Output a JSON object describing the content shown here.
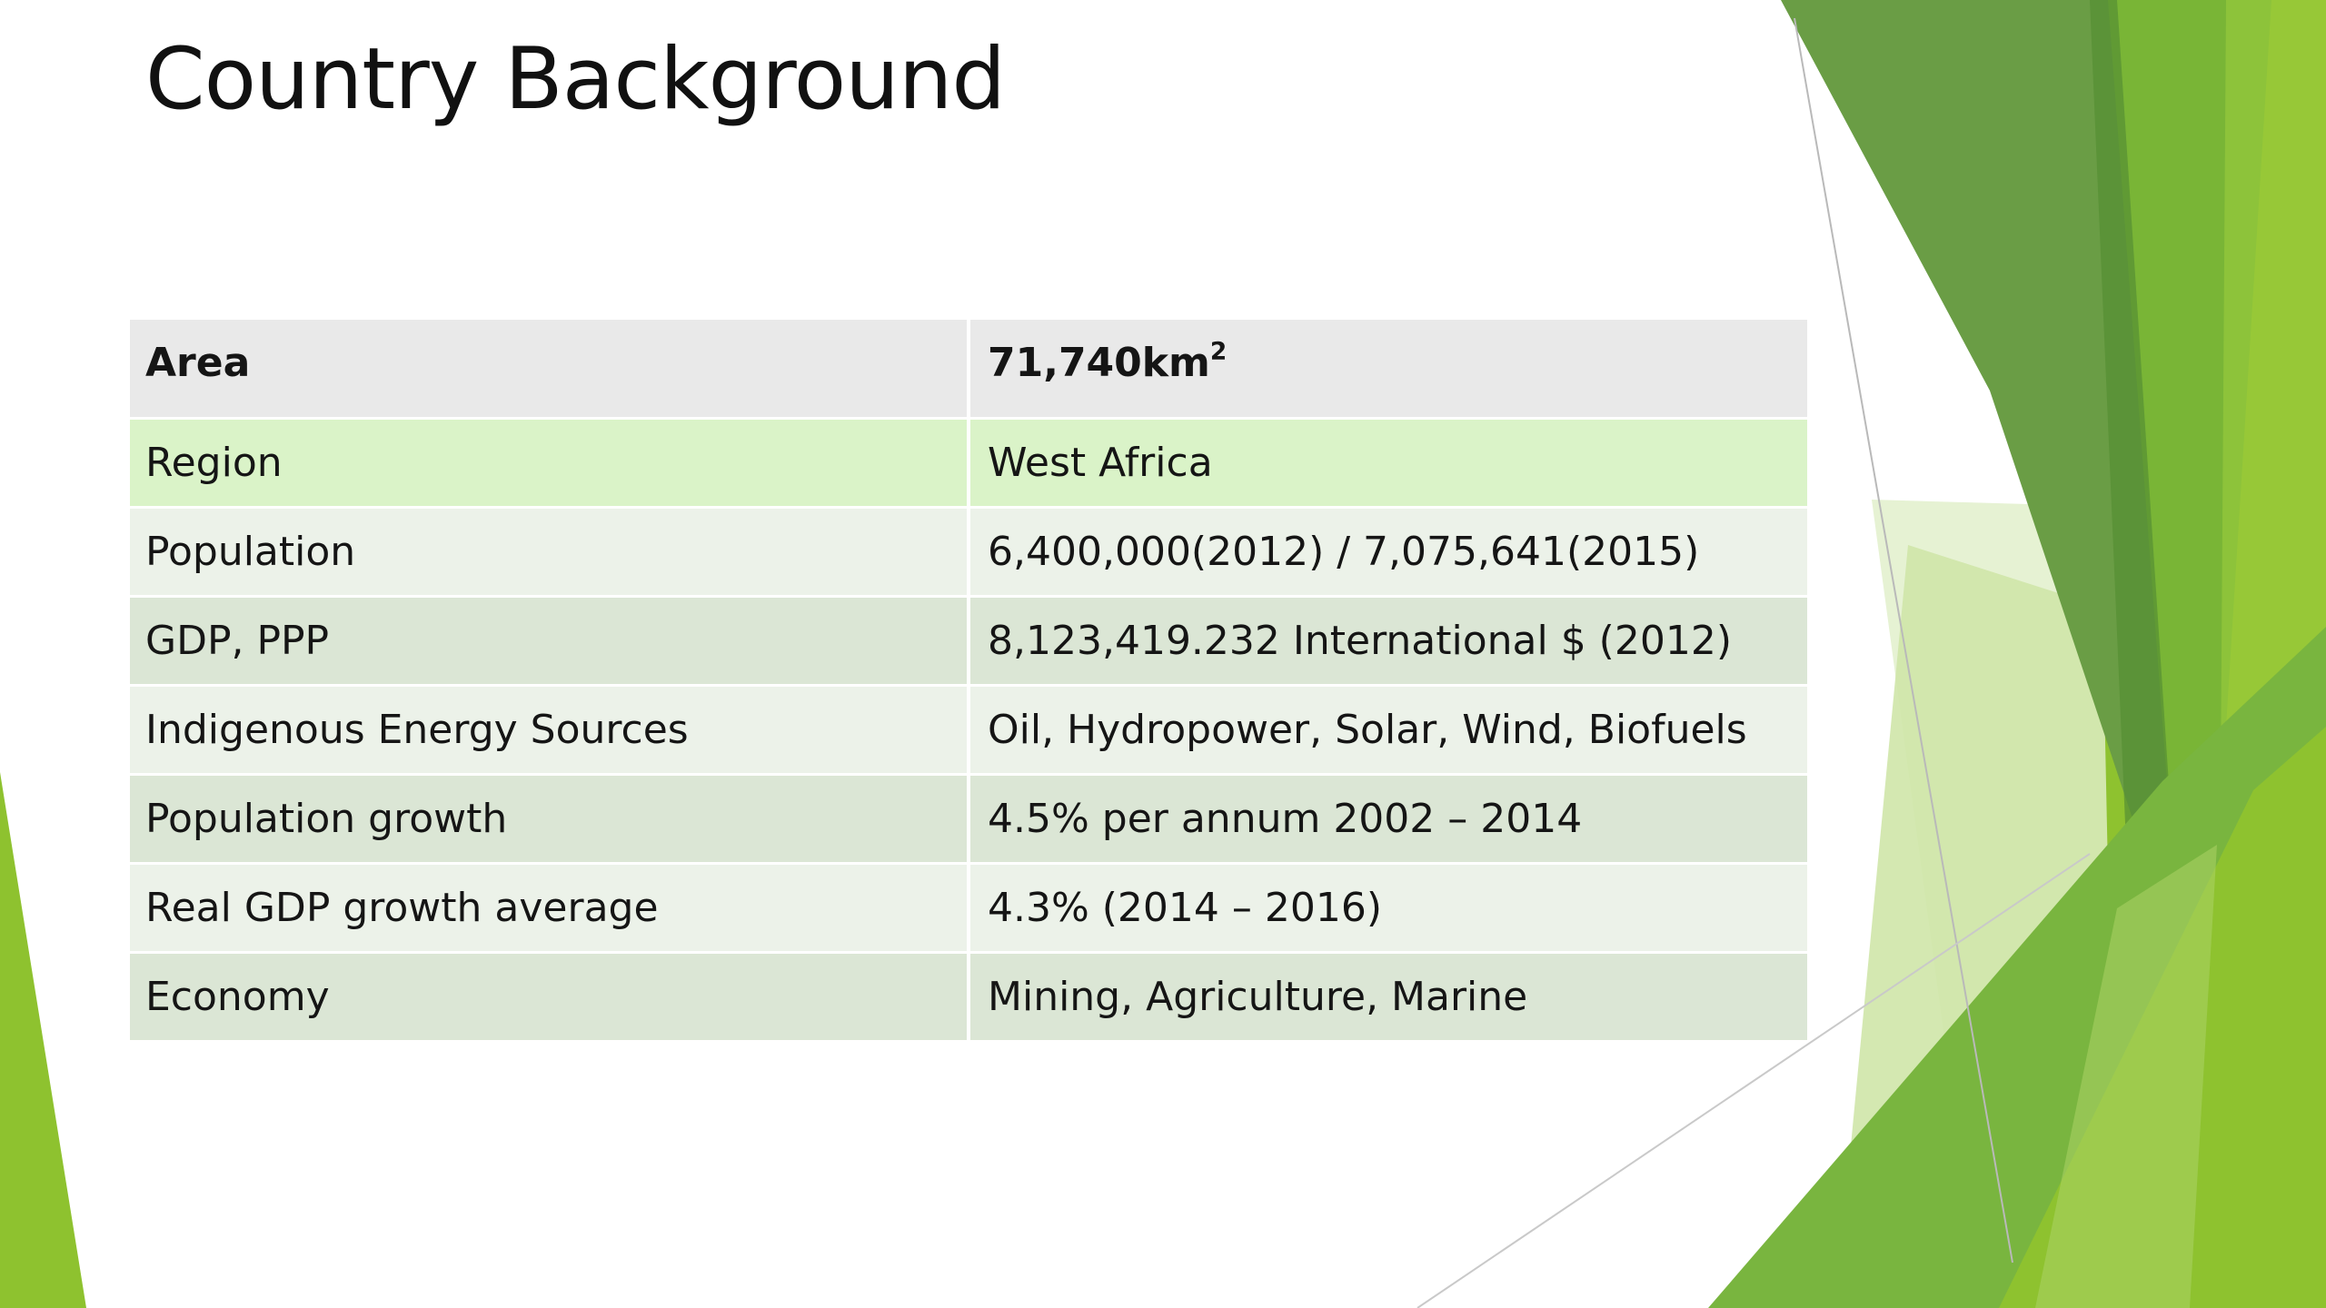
{
  "slide": {
    "title": "Country Background"
  },
  "table": {
    "rows": [
      {
        "label": "Area",
        "value": "71,740km",
        "value_sup": "2"
      },
      {
        "label": "Region",
        "value": "West Africa"
      },
      {
        "label": "Population",
        "value": "6,400,000(2012) / 7,075,641(2015)"
      },
      {
        "label": "GDP, PPP",
        "value": "8,123,419.232 International $ (2012)"
      },
      {
        "label": "Indigenous Energy Sources",
        "value": "Oil, Hydropower, Solar, Wind, Biofuels"
      },
      {
        "label": "Population growth",
        "value": "4.5% per annum 2002 – 2014"
      },
      {
        "label": "Real GDP growth average",
        "value": "4.3% (2014 – 2016)"
      },
      {
        "label": "Economy",
        "value": "Mining, Agriculture, Marine"
      }
    ]
  },
  "theme": {
    "accent_green": "#8ec22f",
    "dark_green": "#5f9a3a",
    "light_green": "#c8e3a4",
    "header_row": "#e9e9e9",
    "highlight_row": "#daf3c8",
    "band_light": "#ecf2e9",
    "band_dark": "#dbe6d5"
  }
}
